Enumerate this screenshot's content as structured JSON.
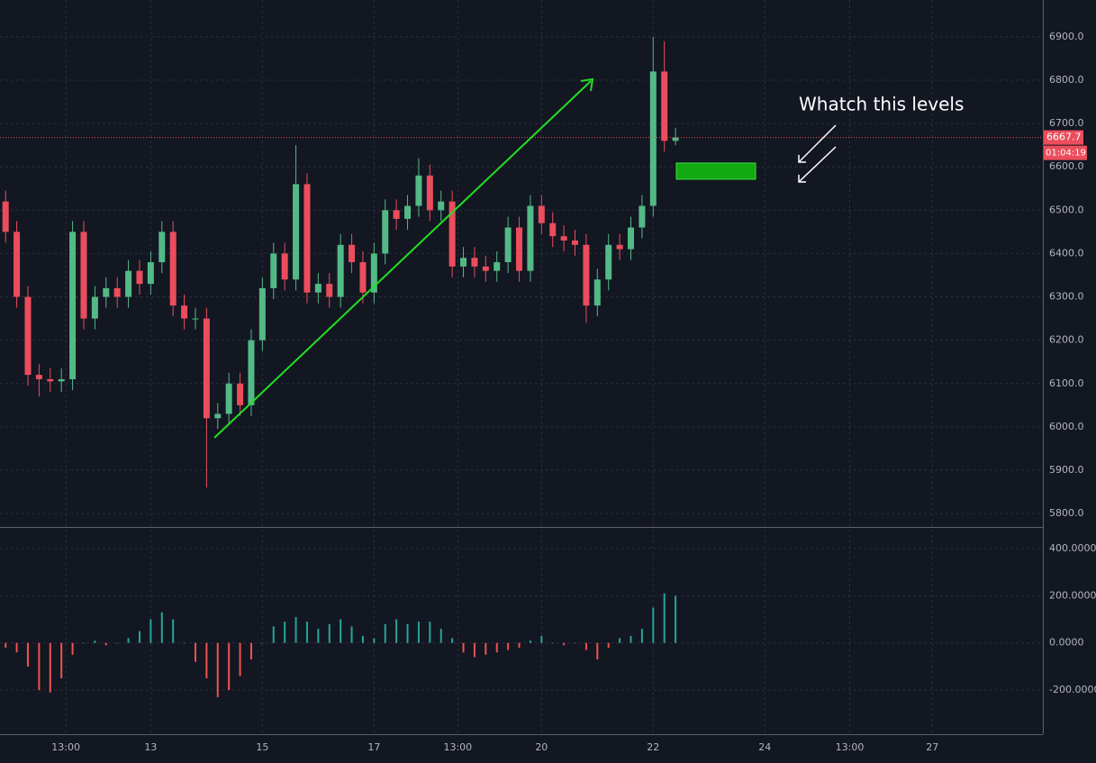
{
  "chart_data": [
    {
      "type": "candlestick",
      "open": [
        6520,
        6450,
        6300,
        6120,
        6110,
        6105,
        6110,
        6450,
        6250,
        6300,
        6320,
        6300,
        6360,
        6330,
        6380,
        6450,
        6280,
        6250,
        6250,
        6020,
        6030,
        6100,
        6050,
        6200,
        6320,
        6400,
        6340,
        6560,
        6310,
        6330,
        6300,
        6420,
        6380,
        6310,
        6400,
        6500,
        6480,
        6510,
        6580,
        6500,
        6520,
        6370,
        6390,
        6370,
        6360,
        6380,
        6460,
        6360,
        6510,
        6470,
        6440,
        6430,
        6420,
        6280,
        6340,
        6420,
        6410,
        6460,
        6510,
        6820,
        6660
      ],
      "high": [
        6545,
        6475,
        6325,
        6145,
        6135,
        6135,
        6475,
        6475,
        6325,
        6345,
        6345,
        6385,
        6385,
        6405,
        6475,
        6475,
        6305,
        6275,
        6275,
        6055,
        6125,
        6125,
        6225,
        6345,
        6425,
        6425,
        6650,
        6585,
        6355,
        6355,
        6445,
        6445,
        6405,
        6425,
        6525,
        6525,
        6535,
        6620,
        6605,
        6545,
        6545,
        6415,
        6415,
        6395,
        6405,
        6485,
        6485,
        6535,
        6535,
        6495,
        6465,
        6455,
        6445,
        6365,
        6445,
        6445,
        6485,
        6535,
        6900,
        6890,
        6690
      ],
      "low": [
        6425,
        6275,
        6095,
        6070,
        6080,
        6080,
        6085,
        6225,
        6225,
        6275,
        6275,
        6275,
        6305,
        6305,
        6355,
        6255,
        6225,
        6225,
        5860,
        5995,
        6005,
        6025,
        6025,
        6175,
        6295,
        6315,
        6315,
        6285,
        6285,
        6275,
        6275,
        6355,
        6285,
        6285,
        6375,
        6455,
        6455,
        6485,
        6475,
        6475,
        6345,
        6345,
        6345,
        6335,
        6335,
        6355,
        6335,
        6335,
        6445,
        6415,
        6405,
        6395,
        6240,
        6255,
        6315,
        6385,
        6385,
        6435,
        6485,
        6635,
        6650
      ],
      "close": [
        6450,
        6300,
        6120,
        6110,
        6105,
        6110,
        6450,
        6250,
        6300,
        6320,
        6300,
        6360,
        6330,
        6380,
        6450,
        6280,
        6250,
        6250,
        6020,
        6030,
        6100,
        6050,
        6200,
        6320,
        6400,
        6340,
        6560,
        6310,
        6330,
        6300,
        6420,
        6380,
        6310,
        6400,
        6500,
        6480,
        6510,
        6580,
        6500,
        6520,
        6370,
        6390,
        6370,
        6360,
        6380,
        6460,
        6360,
        6510,
        6470,
        6440,
        6430,
        6420,
        6280,
        6340,
        6420,
        6410,
        6460,
        6510,
        6820,
        6660,
        6667.7
      ],
      "up_color": "#53b987",
      "down_color": "#eb4d5c",
      "xlim": [
        0,
        93.4
      ],
      "xticks": [
        {
          "value": 5.9,
          "label": "13:00"
        },
        {
          "value": 13.5,
          "label": "13"
        },
        {
          "value": 23.5,
          "label": "15"
        },
        {
          "value": 33.5,
          "label": "17"
        },
        {
          "value": 41,
          "label": "13:00"
        },
        {
          "value": 48.5,
          "label": "20"
        },
        {
          "value": 58.5,
          "label": "22"
        },
        {
          "value": 68.5,
          "label": "24"
        },
        {
          "value": 76.1,
          "label": "13:00"
        },
        {
          "value": 83.5,
          "label": "27"
        }
      ],
      "ylim": [
        5769,
        6985
      ],
      "yticks": [
        {
          "value": 5800,
          "label": "5800.0"
        },
        {
          "value": 5900,
          "label": "5900.0"
        },
        {
          "value": 6000,
          "label": "6000.0"
        },
        {
          "value": 6100,
          "label": "6100.0"
        },
        {
          "value": 6200,
          "label": "6200.0"
        },
        {
          "value": 6300,
          "label": "6300.0"
        },
        {
          "value": 6400,
          "label": "6400.0"
        },
        {
          "value": 6500,
          "label": "6500.0"
        },
        {
          "value": 6600,
          "label": "6600.0"
        },
        {
          "value": 6700,
          "label": "6700.0"
        },
        {
          "value": 6800,
          "label": "6800.0"
        },
        {
          "value": 6900,
          "label": "6900.0"
        }
      ],
      "last_price": 6667.7,
      "countdown": "01:04:19",
      "annotation": "Whatch this levels",
      "grid": true
    },
    {
      "type": "bar",
      "values": [
        -20,
        -40,
        -100,
        -200,
        -210,
        -150,
        -50,
        0,
        10,
        -10,
        0,
        20,
        50,
        100,
        130,
        100,
        0,
        -80,
        -150,
        -230,
        -200,
        -140,
        -70,
        0,
        70,
        90,
        110,
        90,
        60,
        80,
        100,
        70,
        30,
        20,
        80,
        100,
        80,
        90,
        90,
        60,
        20,
        -40,
        -60,
        -50,
        -40,
        -30,
        -20,
        10,
        30,
        0,
        -10,
        0,
        -30,
        -70,
        -20,
        20,
        30,
        60,
        150,
        210,
        200
      ],
      "up_color": "#26a69a",
      "down_color": "#ef5350",
      "ylim": [
        -387,
        488
      ],
      "yticks": [
        {
          "value": -200,
          "label": "-200.0000"
        },
        {
          "value": 0,
          "label": "0.0000"
        },
        {
          "value": 200,
          "label": "200.0000"
        },
        {
          "value": 400,
          "label": "400.0000"
        }
      ]
    }
  ]
}
